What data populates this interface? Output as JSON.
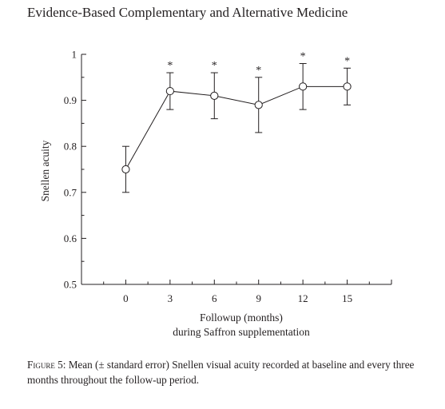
{
  "header": {
    "journal_title": "Evidence-Based Complementary and Alternative Medicine"
  },
  "chart_data": {
    "type": "line",
    "title": "",
    "xlabel_lines": [
      "Followup (months)",
      "during Saffron supplementation"
    ],
    "ylabel": "Snellen acuity",
    "x": [
      0,
      3,
      6,
      9,
      12,
      15
    ],
    "xticks": [
      "0",
      "3",
      "6",
      "9",
      "12",
      "15"
    ],
    "xlim": [
      -3,
      18
    ],
    "ylim": [
      0.5,
      1
    ],
    "yticks": [
      "0.5",
      "0.6",
      "0.7",
      "0.8",
      "0.9",
      "1"
    ],
    "series": [
      {
        "values": [
          0.75,
          0.92,
          0.91,
          0.89,
          0.93,
          0.93
        ],
        "err_high": [
          0.8,
          0.96,
          0.96,
          0.95,
          0.98,
          0.97
        ],
        "err_low": [
          0.7,
          0.88,
          0.86,
          0.83,
          0.88,
          0.89
        ],
        "significance": [
          "",
          "*",
          "*",
          "*",
          "*",
          "*"
        ]
      }
    ],
    "grid": false,
    "legend": "none"
  },
  "caption": {
    "label": "Figure 5:",
    "text": " Mean (± standard error) Snellen visual acuity recorded at baseline and every three months throughout the follow-up period."
  }
}
